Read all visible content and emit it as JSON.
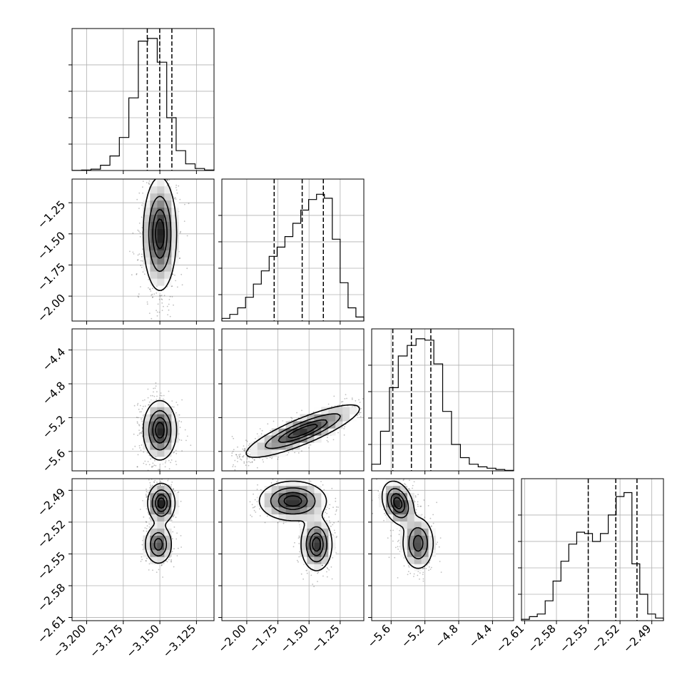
{
  "chart_data": {
    "type": "corner",
    "n_params": 4,
    "grid": true,
    "params": [
      {
        "range": [
          -3.21,
          -3.113
        ],
        "ticks": [
          -3.2,
          -3.175,
          -3.15,
          -3.125
        ],
        "tick_labels": [
          "−3.200",
          "−3.175",
          "−3.150",
          "−3.125"
        ],
        "quantiles": [
          -3.1586,
          -3.1501,
          -3.1418
        ],
        "hist": [
          0.001,
          0.003,
          0.01,
          0.04,
          0.11,
          0.25,
          0.55,
          0.98,
          1.0,
          0.82,
          0.4,
          0.15,
          0.05,
          0.015,
          0.004
        ]
      },
      {
        "range": [
          -2.2,
          -1.06
        ],
        "ticks": [
          -2.0,
          -1.75,
          -1.5,
          -1.25
        ],
        "tick_labels": [
          "−2.00",
          "−1.75",
          "−1.50",
          "−1.25"
        ],
        "quantiles": [
          -1.78,
          -1.555,
          -1.385
        ],
        "hist": [
          0.02,
          0.05,
          0.1,
          0.18,
          0.28,
          0.38,
          0.49,
          0.56,
          0.64,
          0.74,
          0.84,
          0.92,
          0.96,
          0.93,
          0.62,
          0.29,
          0.1,
          0.03
        ]
      },
      {
        "range": [
          -5.83,
          -4.15
        ],
        "ticks": [
          -5.6,
          -5.2,
          -4.8,
          -4.4
        ],
        "tick_labels": [
          "−5.6",
          "−5.2",
          "−4.8",
          "−4.4"
        ],
        "quantiles": [
          -5.58,
          -5.36,
          -5.13
        ],
        "hist": [
          0.05,
          0.3,
          0.63,
          0.87,
          0.95,
          1.0,
          0.99,
          0.81,
          0.45,
          0.2,
          0.1,
          0.05,
          0.03,
          0.02,
          0.01,
          0.004
        ]
      },
      {
        "range": [
          -2.613,
          -2.479
        ],
        "ticks": [
          -2.61,
          -2.58,
          -2.55,
          -2.52,
          -2.49
        ],
        "tick_labels": [
          "−2.61",
          "−2.58",
          "−2.55",
          "−2.52",
          "−2.49"
        ],
        "quantiles": [
          -2.55,
          -2.524,
          -2.504
        ],
        "hist": [
          0.01,
          0.03,
          0.05,
          0.15,
          0.3,
          0.45,
          0.58,
          0.67,
          0.66,
          0.6,
          0.66,
          0.8,
          0.94,
          0.97,
          0.43,
          0.2,
          0.05,
          0.02
        ]
      }
    ],
    "panels_2d": [
      {
        "x": 0,
        "y": 1,
        "modes": [
          {
            "mx": -3.15,
            "my": -1.5,
            "sx": 0.0055,
            "sy": 0.22,
            "rho": 0.0,
            "w": 1.0
          }
        ]
      },
      {
        "x": 0,
        "y": 2,
        "modes": [
          {
            "mx": -3.15,
            "my": -5.35,
            "sx": 0.0055,
            "sy": 0.17,
            "rho": 0.0,
            "w": 1.0
          }
        ]
      },
      {
        "x": 1,
        "y": 2,
        "modes": [
          {
            "mx": -1.55,
            "my": -5.36,
            "sx": 0.22,
            "sy": 0.15,
            "rho": 0.85,
            "w": 1.0
          }
        ]
      },
      {
        "x": 0,
        "y": 3,
        "modes": [
          {
            "mx": -3.149,
            "my": -2.502,
            "sx": 0.0045,
            "sy": 0.009,
            "rho": 0.0,
            "w": 0.55
          },
          {
            "mx": -3.151,
            "my": -2.541,
            "sx": 0.0045,
            "sy": 0.009,
            "rho": 0.0,
            "w": 0.45
          }
        ]
      },
      {
        "x": 1,
        "y": 3,
        "modes": [
          {
            "mx": -1.63,
            "my": -2.5,
            "sx": 0.13,
            "sy": 0.009,
            "rho": 0.0,
            "w": 0.5
          },
          {
            "mx": -1.44,
            "my": -2.541,
            "sx": 0.06,
            "sy": 0.012,
            "rho": 0.0,
            "w": 0.5
          }
        ]
      },
      {
        "x": 2,
        "y": 3,
        "modes": [
          {
            "mx": -5.52,
            "my": -2.502,
            "sx": 0.09,
            "sy": 0.01,
            "rho": -0.3,
            "w": 0.55
          },
          {
            "mx": -5.28,
            "my": -2.54,
            "sx": 0.09,
            "sy": 0.012,
            "rho": 0.0,
            "w": 0.45
          }
        ]
      }
    ],
    "contour_levels": [
      0.118,
      0.393,
      0.675,
      0.865
    ],
    "colors": {
      "density": "#000000",
      "grid": "#b0b0b0",
      "frame": "#000000",
      "background": "#ffffff"
    }
  }
}
